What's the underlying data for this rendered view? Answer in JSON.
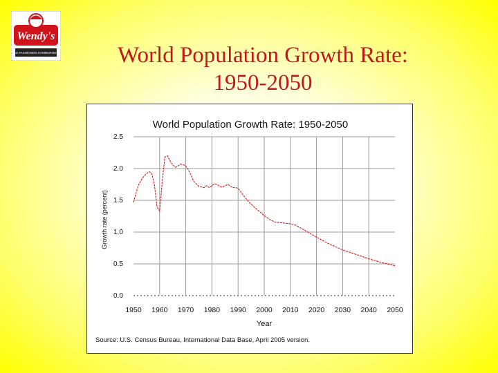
{
  "slide": {
    "title_line1": "World Population Growth Rate:",
    "title_line2": "1950-2050"
  },
  "logo": {
    "text": "Wendy's",
    "subtext": "OLD FASHIONED HAMBURGERS",
    "colors": {
      "red": "#d0121b",
      "white": "#ffffff",
      "dark": "#222222"
    }
  },
  "chart_data": {
    "type": "line",
    "title": "World Population Growth Rate: 1950-2050",
    "xlabel": "Year",
    "ylabel": "Growth rate (percent)",
    "xlim": [
      1950,
      2050
    ],
    "ylim": [
      0,
      2.5
    ],
    "xticks": [
      1950,
      1960,
      1970,
      1980,
      1990,
      2000,
      2010,
      2020,
      2030,
      2040,
      2050
    ],
    "yticks": [
      {
        "value": 0,
        "label": "0.0"
      },
      {
        "value": 0.5,
        "label": "0.5"
      },
      {
        "value": 1.0,
        "label": "1.0"
      },
      {
        "value": 1.5,
        "label": "1.5"
      },
      {
        "value": 2.0,
        "label": "2.0"
      },
      {
        "value": 2.5,
        "label": "2.5"
      }
    ],
    "grid": true,
    "line_color": "#d41c1c",
    "series": [
      {
        "x": [
          1950,
          1951,
          1952,
          1953,
          1954,
          1955,
          1956,
          1957,
          1958,
          1959,
          1960,
          1961,
          1962,
          1963,
          1964,
          1965,
          1966,
          1967,
          1968,
          1969,
          1970,
          1971,
          1972,
          1973,
          1974,
          1975,
          1976,
          1977,
          1978,
          1979,
          1980,
          1981,
          1982,
          1983,
          1984,
          1985,
          1986,
          1987,
          1988,
          1989,
          1990,
          1992,
          1994,
          1996,
          1998,
          2000,
          2002,
          2004,
          2006,
          2008,
          2010,
          2012,
          2015,
          2020,
          2025,
          2030,
          2035,
          2040,
          2045,
          2050
        ],
        "y": [
          1.47,
          1.62,
          1.75,
          1.82,
          1.88,
          1.92,
          1.95,
          1.92,
          1.75,
          1.4,
          1.33,
          1.8,
          2.18,
          2.2,
          2.12,
          2.06,
          2.02,
          2.04,
          2.07,
          2.06,
          2.04,
          1.98,
          1.9,
          1.8,
          1.76,
          1.72,
          1.71,
          1.7,
          1.73,
          1.7,
          1.73,
          1.76,
          1.75,
          1.72,
          1.71,
          1.73,
          1.75,
          1.73,
          1.7,
          1.7,
          1.69,
          1.58,
          1.48,
          1.4,
          1.33,
          1.26,
          1.2,
          1.16,
          1.15,
          1.14,
          1.13,
          1.11,
          1.04,
          0.92,
          0.81,
          0.72,
          0.65,
          0.58,
          0.52,
          0.47
        ]
      }
    ],
    "source": "Source: U.S. Census Bureau, International Data Base, April 2005 version."
  }
}
